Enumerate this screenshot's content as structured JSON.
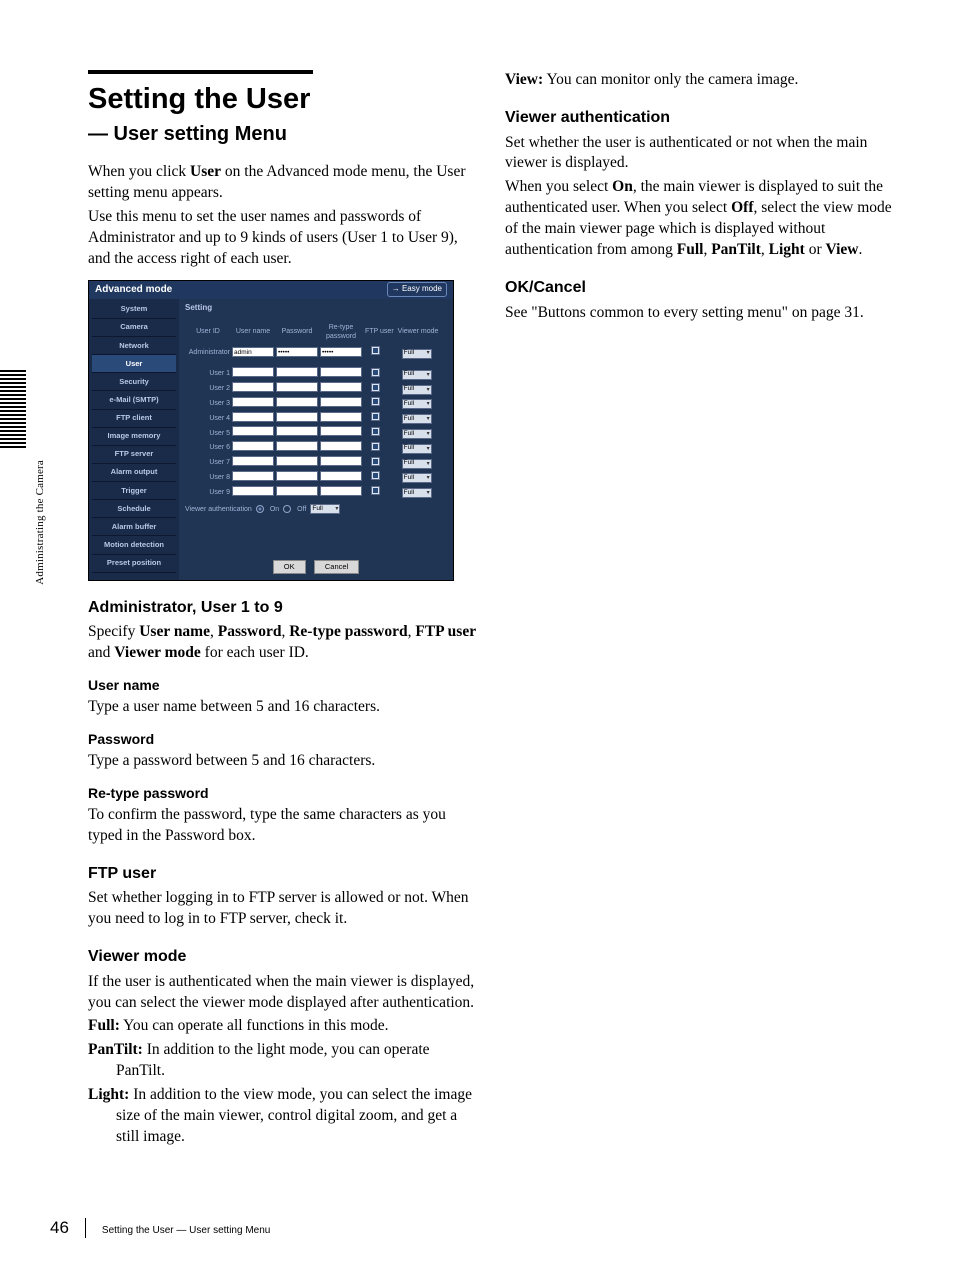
{
  "sidebar_label": "Administrating the Camera",
  "page_number": "46",
  "footer_title": "Setting the User — User setting Menu",
  "left": {
    "h1": "Setting the User",
    "h2": "— User setting Menu",
    "intro1a": "When you click ",
    "intro1b": "User",
    "intro1c": " on the Advanced mode menu, the User setting menu appears.",
    "intro2": "Use this menu to set the user names and passwords of Administrator and up to 9 kinds of users (User 1 to User 9), and the access right of each user.",
    "s_admin_h": "Administrator, User 1 to 9",
    "s_admin_p1": "Specify ",
    "s_admin_b1": "User name",
    "s_admin_c1": ", ",
    "s_admin_b2": "Password",
    "s_admin_c2": ", ",
    "s_admin_b3": "Re-type password",
    "s_admin_c3": ", ",
    "s_admin_b4": "FTP user",
    "s_admin_c4": " and ",
    "s_admin_b5": "Viewer mode",
    "s_admin_c5": " for each user ID.",
    "username_h": "User name",
    "username_p": "Type a user name between 5 and 16 characters.",
    "password_h": "Password",
    "password_p": "Type a password between 5 and 16 characters.",
    "retype_h": "Re-type password",
    "retype_p": "To confirm the password, type the same characters as you typed in the Password box.",
    "ftp_h": "FTP user",
    "ftp_p": "Set whether logging in to FTP server is allowed or not. When you need to log in to FTP server, check it.",
    "viewer_h": "Viewer mode",
    "viewer_p": "If the user is authenticated when the main viewer is displayed, you can select the viewer mode displayed after authentication.",
    "vm_full_b": "Full:",
    "vm_full_t": " You can operate all functions in this mode.",
    "vm_pan_b": "PanTilt:",
    "vm_pan_t": " In addition to the light mode, you can operate PanTilt.",
    "vm_light_b": "Light:",
    "vm_light_t": " In addition to the view mode, you can select the image size of the main viewer, control digital zoom, and get a still image."
  },
  "right": {
    "view_b": "View:",
    "view_t": " You can monitor only the camera image.",
    "va_h": "Viewer authentication",
    "va_p1": "Set whether the user is authenticated or not when the main viewer is displayed.",
    "va_p2a": "When you select ",
    "va_p2b": "On",
    "va_p2c": ", the main viewer is displayed to suit the authenticated user. When you select ",
    "va_p2d": "Off",
    "va_p2e": ", select the view mode of the main viewer page which is displayed without authentication from among ",
    "va_p2f": "Full",
    "va_p2g": ", ",
    "va_p2h": "PanTilt",
    "va_p2i": ", ",
    "va_p2j": "Light",
    "va_p2k": " or ",
    "va_p2l": "View",
    "va_p2m": ".",
    "ok_h": "OK/Cancel",
    "ok_p": "See \"Buttons common to every setting menu\" on page 31."
  },
  "shot": {
    "title": "Advanced mode",
    "easy": "→ Easy mode",
    "nav": [
      "System",
      "Camera",
      "Network",
      "User",
      "Security",
      "e-Mail (SMTP)",
      "FTP client",
      "Image memory",
      "FTP server",
      "Alarm output",
      "Trigger",
      "Schedule",
      "Alarm buffer",
      "Motion detection",
      "Preset position"
    ],
    "active_nav_index": 3,
    "setting_label": "Setting",
    "th": [
      "User ID",
      "User name",
      "Password",
      "Re-type password",
      "FTP user",
      "Viewer mode"
    ],
    "admin_label": "Administrator",
    "admin_value": "admin",
    "pw_mask": "•••••",
    "user_rows": [
      "User 1",
      "User 2",
      "User 3",
      "User 4",
      "User 5",
      "User 6",
      "User 7",
      "User 8",
      "User 9"
    ],
    "mode_option": "Full",
    "va_label": "Viewer authentication",
    "va_on": "On",
    "va_off": "Off",
    "ok_btn": "OK",
    "cancel_btn": "Cancel"
  }
}
